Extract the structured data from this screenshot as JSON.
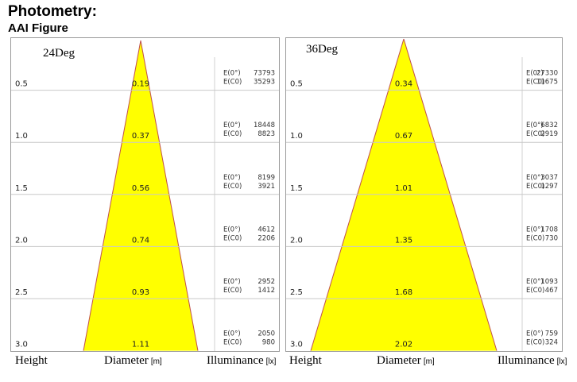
{
  "header": {
    "title": "Photometry:",
    "subtitle": "AAI Figure"
  },
  "footer": {
    "height_label": "Height",
    "diameter_label": "Diameter",
    "diameter_unit": "[m]",
    "illuminance_label": "Illuminance",
    "illuminance_unit": "[lx]"
  },
  "chart_data": [
    {
      "type": "table",
      "title": "24Deg",
      "heights": [
        "0.5",
        "1.0",
        "1.5",
        "2.0",
        "2.5",
        "3.0"
      ],
      "diameters": [
        "0.19",
        "0.37",
        "0.56",
        "0.74",
        "0.93",
        "1.11"
      ],
      "e0_label": "E(0°)",
      "ec0_label": "E(C0)",
      "e0": [
        "73793",
        "18448",
        "8199",
        "4612",
        "2952",
        "2050"
      ],
      "ec0": [
        "35293",
        "8823",
        "3921",
        "2206",
        "1412",
        "980"
      ],
      "max_diameter": 1.11,
      "beam_color": "#ffff00",
      "edge_color": "#c0504d"
    },
    {
      "type": "table",
      "title": "36Deg",
      "heights": [
        "0.5",
        "1.0",
        "1.5",
        "2.0",
        "2.5",
        "3.0"
      ],
      "diameters": [
        "0.34",
        "0.67",
        "1.01",
        "1.35",
        "1.68",
        "2.02"
      ],
      "e0_label": "E(0°)",
      "ec0_label": "E(C0)",
      "e0": [
        "27330",
        "6832",
        "3037",
        "1708",
        "1093",
        "759"
      ],
      "ec0": [
        "11675",
        "2919",
        "1297",
        "730",
        "467",
        "324"
      ],
      "max_diameter": 2.02,
      "beam_color": "#ffff00",
      "edge_color": "#c0504d"
    }
  ]
}
